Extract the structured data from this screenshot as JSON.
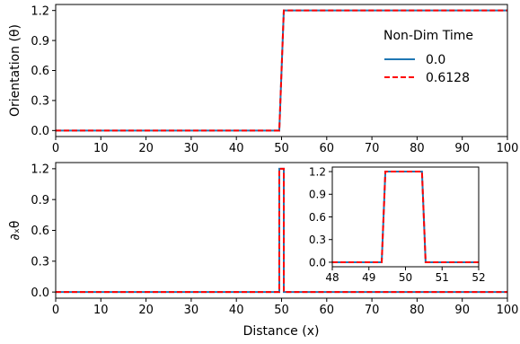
{
  "chart_data": [
    {
      "type": "line",
      "panel": "top",
      "ylabel": "Orientation (θ)",
      "xlim": [
        0,
        100
      ],
      "ylim": [
        -0.06,
        1.26
      ],
      "xticks": [
        0,
        10,
        20,
        30,
        40,
        50,
        60,
        70,
        80,
        90,
        100
      ],
      "yticks": [
        0.0,
        0.3,
        0.6,
        0.9,
        1.2
      ],
      "ytick_labels": [
        "0.0",
        "0.3",
        "0.6",
        "0.9",
        "1.2"
      ],
      "grid": false,
      "legend": {
        "title": "Non-Dim Time",
        "placement": "right",
        "entries": [
          {
            "name": "0.0",
            "color": "#1f77b4",
            "style": "solid"
          },
          {
            "name": "0.6128",
            "color": "#ff0000",
            "style": "dashed"
          }
        ]
      },
      "series": [
        {
          "name": "0.0",
          "x": [
            0,
            49.5,
            50.5,
            100
          ],
          "y": [
            0,
            0,
            1.2,
            1.2
          ]
        },
        {
          "name": "0.6128",
          "x": [
            0,
            49.5,
            50.5,
            100
          ],
          "y": [
            0,
            0,
            1.2,
            1.2
          ]
        }
      ]
    },
    {
      "type": "line",
      "panel": "bottom",
      "xlabel": "Distance (x)",
      "ylabel": "∂ₓθ",
      "xlim": [
        0,
        100
      ],
      "ylim": [
        -0.06,
        1.26
      ],
      "xticks": [
        0,
        10,
        20,
        30,
        40,
        50,
        60,
        70,
        80,
        90,
        100
      ],
      "yticks": [
        0.0,
        0.3,
        0.6,
        0.9,
        1.2
      ],
      "ytick_labels": [
        "0.0",
        "0.3",
        "0.6",
        "0.9",
        "1.2"
      ],
      "grid": false,
      "series": [
        {
          "name": "0.0",
          "x": [
            0,
            49.5,
            49.5,
            50.5,
            50.5,
            100
          ],
          "y": [
            0,
            0,
            1.2,
            1.2,
            0,
            0
          ]
        },
        {
          "name": "0.6128",
          "x": [
            0,
            49.5,
            49.5,
            50.5,
            50.5,
            100
          ],
          "y": [
            0,
            0,
            1.2,
            1.2,
            0,
            0
          ]
        }
      ]
    },
    {
      "type": "line",
      "panel": "inset",
      "xlim": [
        48,
        52
      ],
      "ylim": [
        -0.06,
        1.26
      ],
      "xticks": [
        48,
        49,
        50,
        51,
        52
      ],
      "yticks": [
        0.0,
        0.3,
        0.6,
        0.9,
        1.2
      ],
      "ytick_labels": [
        "0.0",
        "0.3",
        "0.6",
        "0.9",
        "1.2"
      ],
      "grid": false,
      "series": [
        {
          "name": "0.0",
          "x": [
            48,
            49.35,
            49.45,
            50.45,
            50.55,
            52
          ],
          "y": [
            0,
            0,
            1.2,
            1.2,
            0,
            0
          ]
        },
        {
          "name": "0.6128",
          "x": [
            48,
            49.35,
            49.45,
            50.45,
            50.55,
            52
          ],
          "y": [
            0,
            0,
            1.2,
            1.2,
            0,
            0
          ]
        }
      ]
    }
  ],
  "colors": {
    "series_0": "#1f77b4",
    "series_1": "#ff0000"
  }
}
